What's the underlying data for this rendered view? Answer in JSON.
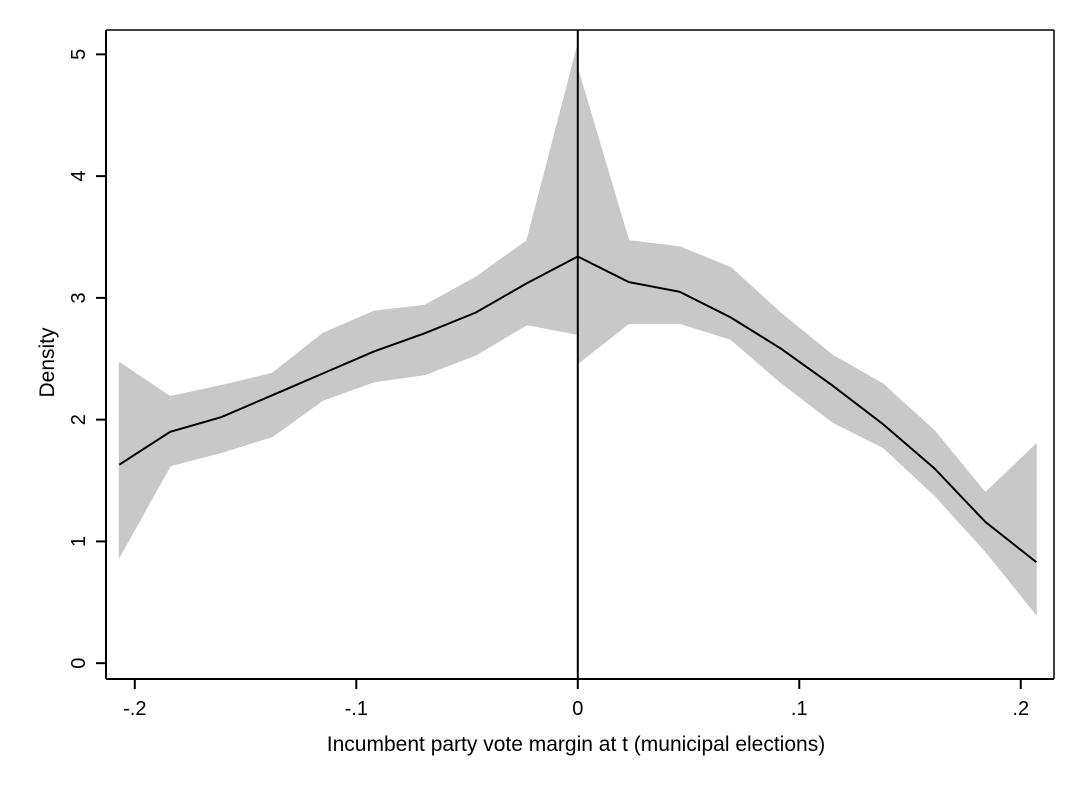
{
  "chart_data": {
    "type": "line",
    "title": "",
    "xlabel": "Incumbent party vote margin at t (municipal elections)",
    "ylabel": "Density",
    "xlim": [
      -0.213,
      0.215
    ],
    "ylim": [
      -0.13,
      5.2
    ],
    "x_ticks": [
      {
        "value": -0.2,
        "label": "-.2"
      },
      {
        "value": -0.1,
        "label": "-.1"
      },
      {
        "value": 0,
        "label": "0"
      },
      {
        "value": 0.1,
        "label": ".1"
      },
      {
        "value": 0.2,
        "label": ".2"
      }
    ],
    "y_ticks": [
      {
        "value": 0,
        "label": "0"
      },
      {
        "value": 1,
        "label": "1"
      },
      {
        "value": 2,
        "label": "2"
      },
      {
        "value": 3,
        "label": "3"
      },
      {
        "value": 4,
        "label": "4"
      },
      {
        "value": 5,
        "label": "5"
      }
    ],
    "cutoff_x": 0,
    "grid": false,
    "colors": {
      "line": "#000000",
      "band": "#c8c8c8",
      "axis": "#000000"
    },
    "series": [
      {
        "side": "left",
        "x": [
          -0.207,
          -0.184,
          -0.161,
          -0.138,
          -0.115,
          -0.092,
          -0.069,
          -0.046,
          -0.023,
          0.0
        ],
        "y": [
          1.63,
          1.9,
          2.02,
          2.2,
          2.38,
          2.56,
          2.71,
          2.88,
          3.12,
          3.34
        ],
        "upper": [
          2.47,
          2.19,
          2.28,
          2.38,
          2.71,
          2.89,
          2.94,
          3.17,
          3.47,
          5.08
        ],
        "lower": [
          0.87,
          1.62,
          1.73,
          1.86,
          2.16,
          2.31,
          2.37,
          2.53,
          2.78,
          2.7
        ]
      },
      {
        "side": "right",
        "x": [
          0.0,
          0.023,
          0.046,
          0.069,
          0.092,
          0.115,
          0.138,
          0.161,
          0.184,
          0.207
        ],
        "y": [
          3.34,
          3.13,
          3.05,
          2.84,
          2.58,
          2.28,
          1.96,
          1.6,
          1.16,
          0.83
        ],
        "upper": [
          4.88,
          3.47,
          3.42,
          3.25,
          2.87,
          2.53,
          2.29,
          1.91,
          1.4,
          1.8
        ],
        "lower": [
          2.46,
          2.79,
          2.79,
          2.66,
          2.3,
          1.98,
          1.77,
          1.38,
          0.92,
          0.4
        ]
      }
    ]
  }
}
